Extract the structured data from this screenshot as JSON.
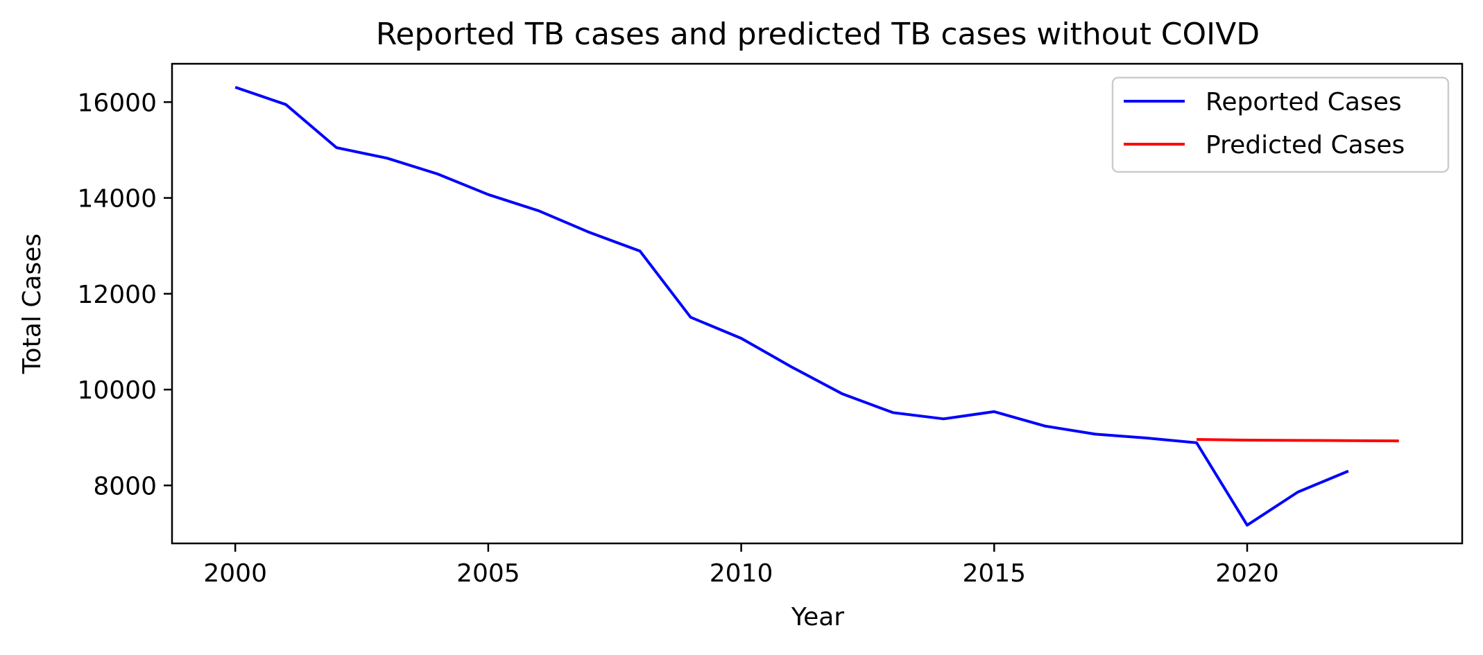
{
  "chart_data": {
    "type": "line",
    "title": "Reported TB cases and predicted TB cases without COIVD",
    "xlabel": "Year",
    "ylabel": "Total Cases",
    "xlim": [
      1998.75,
      2024.25
    ],
    "ylim": [
      6790,
      16800
    ],
    "xticks": [
      2000,
      2005,
      2010,
      2015,
      2020
    ],
    "yticks": [
      8000,
      10000,
      12000,
      14000,
      16000
    ],
    "grid": false,
    "legend_position": "top-right",
    "series": [
      {
        "name": "Reported Cases",
        "color": "#0000ff",
        "x": [
          2000,
          2001,
          2002,
          2003,
          2004,
          2005,
          2006,
          2007,
          2008,
          2009,
          2010,
          2011,
          2012,
          2013,
          2014,
          2015,
          2016,
          2017,
          2018,
          2019,
          2020,
          2021,
          2022
        ],
        "y": [
          16310,
          15950,
          15050,
          14830,
          14500,
          14070,
          13730,
          13280,
          12890,
          11510,
          11070,
          10470,
          9910,
          9520,
          9390,
          9540,
          9240,
          9070,
          8990,
          8890,
          7170,
          7860,
          8300
        ]
      },
      {
        "name": "Predicted Cases",
        "color": "#ff0000",
        "x": [
          2019,
          2020,
          2021,
          2022,
          2023
        ],
        "y": [
          8960,
          8945,
          8940,
          8935,
          8930
        ]
      }
    ]
  }
}
